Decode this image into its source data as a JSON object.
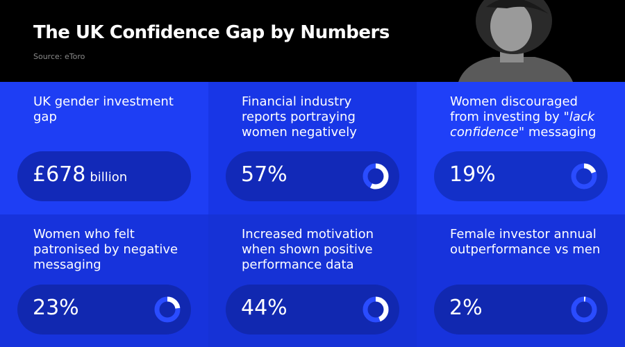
{
  "header": {
    "title": "The UK Confidence Gap by Numbers",
    "source": "Source: eToro"
  },
  "cards": [
    {
      "title": [
        "UK gender investment gap"
      ],
      "value_label": "£678",
      "unit": "billion"
    },
    {
      "title": [
        "Financial industry reports portraying women negatively"
      ],
      "value": 57,
      "value_label": "57%"
    },
    {
      "title": [
        "Women discouraged from investing by ",
        "\"lack confidence\"",
        " messaging"
      ],
      "value": 19,
      "value_label": "19%"
    },
    {
      "title": [
        "Women who felt patronised by negative messaging"
      ],
      "value": 23,
      "value_label": "23%"
    },
    {
      "title": [
        "Increased motivation when shown positive performance data"
      ],
      "value": 44,
      "value_label": "44%"
    },
    {
      "title": [
        "Female investor annual outperformance vs men"
      ],
      "value": 2,
      "value_label": "2%"
    }
  ]
}
